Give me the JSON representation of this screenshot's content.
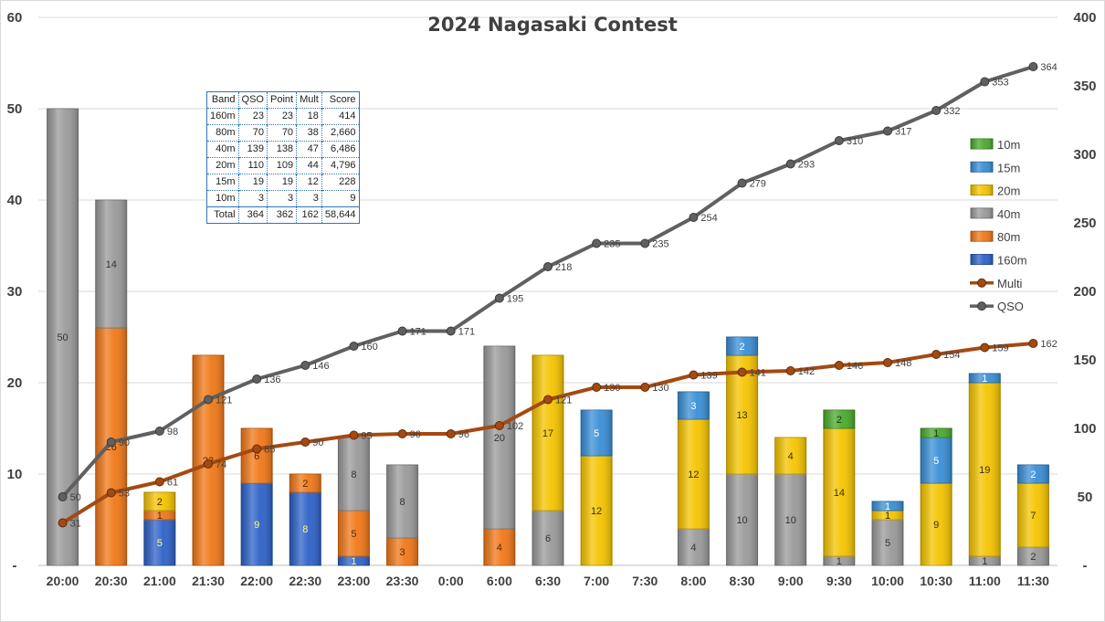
{
  "chart_data": {
    "type": "bar",
    "title": "2024 Nagasaki Contest",
    "categories": [
      "20:00",
      "20:30",
      "21:00",
      "21:30",
      "22:00",
      "22:30",
      "23:00",
      "23:30",
      "0:00",
      "6:00",
      "6:30",
      "7:00",
      "7:30",
      "8:00",
      "8:30",
      "9:00",
      "9:30",
      "10:00",
      "10:30",
      "11:00",
      "11:30"
    ],
    "stacked": true,
    "left_axis": {
      "ylim": [
        0,
        60
      ],
      "ticks": [
        "-",
        "10",
        "20",
        "30",
        "40",
        "50",
        "60"
      ]
    },
    "right_axis": {
      "ylim": [
        0,
        400
      ],
      "ticks": [
        "-",
        "50",
        "100",
        "150",
        "200",
        "250",
        "300",
        "350",
        "400"
      ]
    },
    "grid": true,
    "legend_position": "right",
    "series": [
      {
        "name": "160m",
        "kind": "bar",
        "color": "#2e62c8",
        "values": [
          0,
          0,
          5,
          0,
          9,
          8,
          1,
          0,
          0,
          0,
          0,
          0,
          0,
          0,
          0,
          0,
          0,
          0,
          0,
          0,
          0
        ]
      },
      {
        "name": "80m",
        "kind": "bar",
        "color": "#f07818",
        "values": [
          0,
          26,
          1,
          23,
          6,
          2,
          5,
          3,
          0,
          4,
          0,
          0,
          0,
          0,
          0,
          0,
          0,
          0,
          0,
          0,
          0
        ]
      },
      {
        "name": "40m",
        "kind": "bar",
        "color": "#9a9a9a",
        "values": [
          50,
          14,
          0,
          0,
          0,
          0,
          8,
          8,
          0,
          20,
          6,
          0,
          0,
          4,
          10,
          10,
          1,
          5,
          0,
          1,
          2
        ]
      },
      {
        "name": "20m",
        "kind": "bar",
        "color": "#f5c400",
        "values": [
          0,
          0,
          2,
          0,
          0,
          0,
          0,
          0,
          0,
          0,
          17,
          12,
          0,
          12,
          13,
          4,
          14,
          1,
          9,
          19,
          7
        ]
      },
      {
        "name": "15m",
        "kind": "bar",
        "color": "#3a8fd6",
        "values": [
          0,
          0,
          0,
          0,
          0,
          0,
          0,
          0,
          0,
          0,
          0,
          5,
          0,
          3,
          2,
          0,
          0,
          1,
          5,
          1,
          2
        ]
      },
      {
        "name": "10m",
        "kind": "bar",
        "color": "#4aaa2c",
        "values": [
          0,
          0,
          0,
          0,
          0,
          0,
          0,
          0,
          0,
          0,
          0,
          0,
          0,
          0,
          0,
          0,
          2,
          0,
          1,
          0,
          0
        ]
      },
      {
        "name": "Multi",
        "kind": "line",
        "axis": "right",
        "color": "#a34a12",
        "values": [
          31,
          53,
          61,
          74,
          85,
          90,
          95,
          96,
          96,
          102,
          121,
          130,
          130,
          139,
          141,
          142,
          146,
          148,
          154,
          159,
          162
        ]
      },
      {
        "name": "QSO",
        "kind": "line",
        "axis": "right",
        "color": "#606060",
        "values": [
          50,
          90,
          98,
          121,
          136,
          146,
          160,
          171,
          171,
          195,
          218,
          235,
          235,
          254,
          279,
          293,
          310,
          317,
          332,
          353,
          364
        ]
      }
    ]
  },
  "table": {
    "headers": [
      "Band",
      "QSO",
      "Point",
      "Mult",
      "Score"
    ],
    "rows": [
      [
        "160m",
        "23",
        "23",
        "18",
        "414"
      ],
      [
        "80m",
        "70",
        "70",
        "38",
        "2,660"
      ],
      [
        "40m",
        "139",
        "138",
        "47",
        "6,486"
      ],
      [
        "20m",
        "110",
        "109",
        "44",
        "4,796"
      ],
      [
        "15m",
        "19",
        "19",
        "12",
        "228"
      ],
      [
        "10m",
        "3",
        "3",
        "3",
        "9"
      ]
    ],
    "total": [
      "Total",
      "364",
      "362",
      "162",
      "58,644"
    ]
  }
}
